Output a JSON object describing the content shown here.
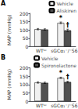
{
  "chart_data": [
    {
      "type": "bar",
      "title": "A",
      "categories": [
        "WTˢᶜ",
        "sGCα₁⁻/⁻S6"
      ],
      "series": [
        {
          "name": "Vehicle",
          "color": "#f0f0f0",
          "values": [
            105,
            143
          ],
          "errors": [
            4,
            5
          ]
        },
        {
          "name": "Aliskiren",
          "color": "#505050",
          "values": [
            103,
            98
          ],
          "errors": [
            4,
            7
          ]
        }
      ],
      "ylabel": "MAP (mmHg)",
      "ylim": [
        0,
        200
      ],
      "yticks": [
        0,
        50,
        100,
        150,
        200
      ],
      "legend": "upper right",
      "grid": false,
      "annotations": [
        {
          "text": "*",
          "series": "Vehicle",
          "category": "sGCα₁⁻/⁻S6"
        },
        {
          "text": "†",
          "series": "Aliskiren",
          "category": "sGCα₁⁻/⁻S6"
        }
      ]
    },
    {
      "type": "bar",
      "title": "B",
      "categories": [
        "WTˢᶜ",
        "sGCα₁⁻/⁻S6"
      ],
      "series": [
        {
          "name": "Vehicle",
          "color": "#f0f0f0",
          "values": [
            112,
            140
          ],
          "errors": [
            4,
            4
          ]
        },
        {
          "name": "Spironolactone",
          "color": "#505050",
          "values": [
            110,
            115
          ],
          "errors": [
            4,
            5
          ]
        }
      ],
      "ylabel": "MAP (mmHg)",
      "ylim": [
        0,
        200
      ],
      "yticks": [
        0,
        50,
        100,
        150,
        200
      ],
      "legend": "upper right",
      "grid": false,
      "annotations": [
        {
          "text": "*",
          "series": "Vehicle",
          "category": "sGCα₁⁻/⁻S6"
        },
        {
          "text": "†",
          "series": "Spironolactone",
          "category": "sGCα₁⁻/⁻S6"
        }
      ]
    }
  ]
}
